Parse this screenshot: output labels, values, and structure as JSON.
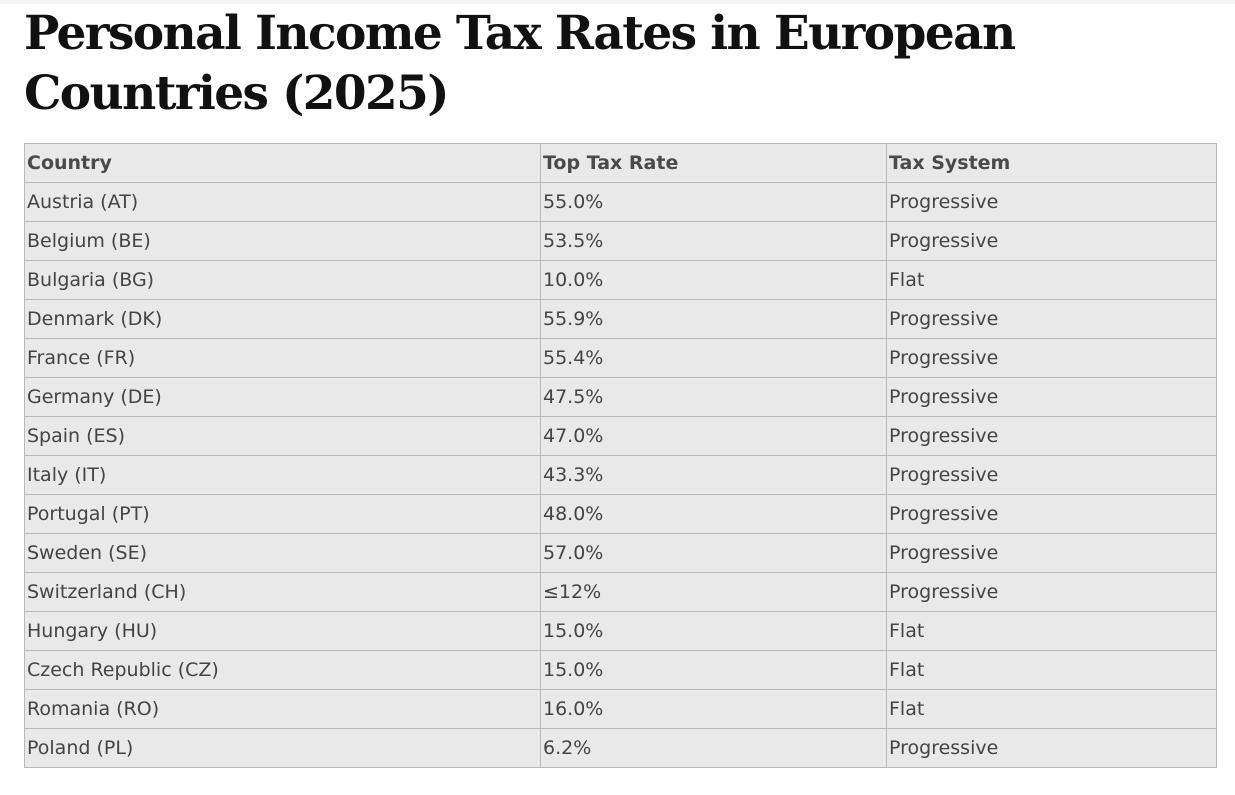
{
  "title": "Personal Income Tax Rates in European Countries (2025)",
  "table": {
    "headers": [
      "Country",
      "Top Tax Rate",
      "Tax System"
    ],
    "rows": [
      {
        "country": "Austria (AT)",
        "rate": "55.0%",
        "system": "Progressive"
      },
      {
        "country": "Belgium (BE)",
        "rate": "53.5%",
        "system": "Progressive"
      },
      {
        "country": "Bulgaria (BG)",
        "rate": "10.0%",
        "system": "Flat"
      },
      {
        "country": "Denmark (DK)",
        "rate": "55.9%",
        "system": "Progressive"
      },
      {
        "country": "France (FR)",
        "rate": "55.4%",
        "system": "Progressive"
      },
      {
        "country": "Germany (DE)",
        "rate": "47.5%",
        "system": "Progressive"
      },
      {
        "country": "Spain (ES)",
        "rate": "47.0%",
        "system": "Progressive"
      },
      {
        "country": "Italy (IT)",
        "rate": "43.3%",
        "system": "Progressive"
      },
      {
        "country": "Portugal (PT)",
        "rate": "48.0%",
        "system": "Progressive"
      },
      {
        "country": "Sweden (SE)",
        "rate": "57.0%",
        "system": "Progressive"
      },
      {
        "country": "Switzerland (CH)",
        "rate": "≤12%",
        "system": "Progressive"
      },
      {
        "country": "Hungary (HU)",
        "rate": "15.0%",
        "system": "Flat"
      },
      {
        "country": "Czech Republic (CZ)",
        "rate": "15.0%",
        "system": "Flat"
      },
      {
        "country": "Romania (RO)",
        "rate": "16.0%",
        "system": "Flat"
      },
      {
        "country": "Poland (PL)",
        "rate": "6.2%",
        "system": "Progressive"
      }
    ]
  }
}
